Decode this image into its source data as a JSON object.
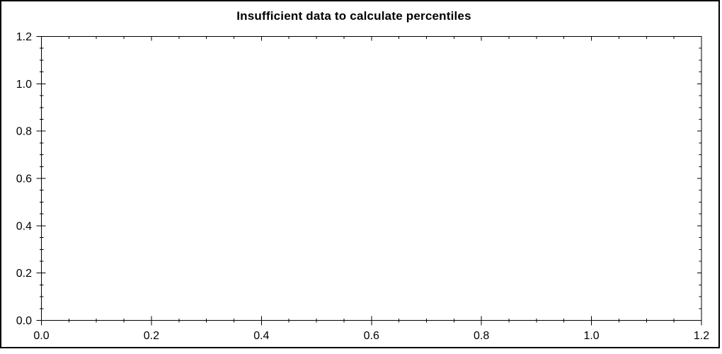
{
  "chart_data": {
    "type": "line",
    "title": "Insufficient data to calculate percentiles",
    "series": [],
    "x_axis": {
      "min": 0.0,
      "max": 1.2,
      "major_ticks": [
        0.0,
        0.2,
        0.4,
        0.6,
        0.8,
        1.0,
        1.2
      ],
      "tick_labels": [
        "0.0",
        "0.2",
        "0.4",
        "0.6",
        "0.8",
        "1.0",
        "1.2"
      ],
      "minor_tick_interval": 0.05
    },
    "y_axis": {
      "min": 0.0,
      "max": 1.2,
      "major_ticks": [
        0.0,
        0.2,
        0.4,
        0.6,
        0.8,
        1.0,
        1.2
      ],
      "tick_labels": [
        "0.0",
        "0.2",
        "0.4",
        "0.6",
        "0.8",
        "1.0",
        "1.2"
      ],
      "minor_tick_interval": 0.05
    },
    "grid": false,
    "legend": false,
    "frame": "full-box-with-mirrored-ticks",
    "colors": {
      "axis": "#000000",
      "text": "#000000",
      "background": "#ffffff",
      "outer_border": "#000000"
    }
  }
}
